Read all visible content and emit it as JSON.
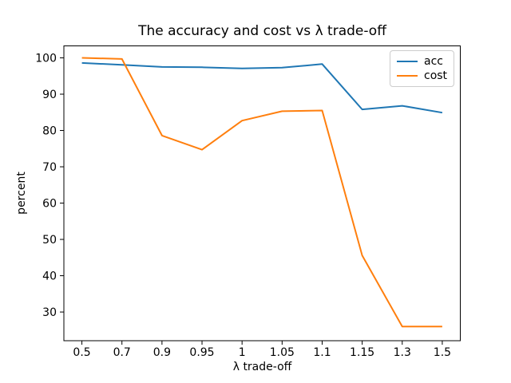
{
  "chart_data": {
    "type": "line",
    "title": "The accuracy and cost vs λ trade-off",
    "xlabel": "λ trade-off",
    "ylabel": "percent",
    "categories": [
      "0.5",
      "0.7",
      "0.9",
      "0.95",
      "1",
      "1.05",
      "1.1",
      "1.15",
      "1.3",
      "1.5"
    ],
    "series": [
      {
        "name": "acc",
        "color": "#1f77b4",
        "values": [
          98.6,
          98.1,
          97.5,
          97.4,
          97.1,
          97.3,
          98.3,
          85.8,
          86.8,
          84.9
        ]
      },
      {
        "name": "cost",
        "color": "#ff7f0e",
        "values": [
          100.0,
          99.7,
          78.6,
          74.7,
          82.7,
          85.3,
          85.5,
          45.6,
          26.0,
          26.0
        ]
      }
    ],
    "yticks": [
      30,
      40,
      50,
      60,
      70,
      80,
      90,
      100
    ],
    "ylim": [
      22.1,
      103.3
    ],
    "grid": false,
    "legend_position": "upper right",
    "axis_color": "#000000",
    "background_color": "#ffffff"
  }
}
